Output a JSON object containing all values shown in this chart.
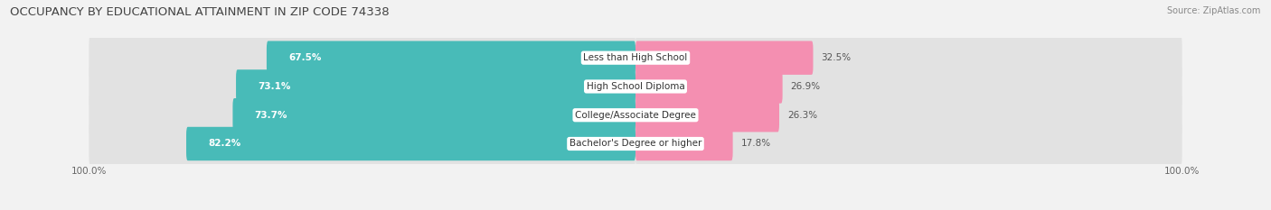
{
  "title": "OCCUPANCY BY EDUCATIONAL ATTAINMENT IN ZIP CODE 74338",
  "source": "Source: ZipAtlas.com",
  "categories": [
    "Less than High School",
    "High School Diploma",
    "College/Associate Degree",
    "Bachelor's Degree or higher"
  ],
  "owner_pct": [
    67.5,
    73.1,
    73.7,
    82.2
  ],
  "renter_pct": [
    32.5,
    26.9,
    26.3,
    17.8
  ],
  "owner_color": "#48bbb8",
  "renter_color": "#f48fb1",
  "bg_color": "#f2f2f2",
  "bar_bg_color": "#e2e2e2",
  "bar_height": 0.62,
  "figsize": [
    14.06,
    2.33
  ],
  "dpi": 100,
  "title_fontsize": 9.5,
  "source_fontsize": 7,
  "bar_label_fontsize": 7.5,
  "category_fontsize": 7.5,
  "axis_label_fontsize": 7.5,
  "legend_fontsize": 8
}
